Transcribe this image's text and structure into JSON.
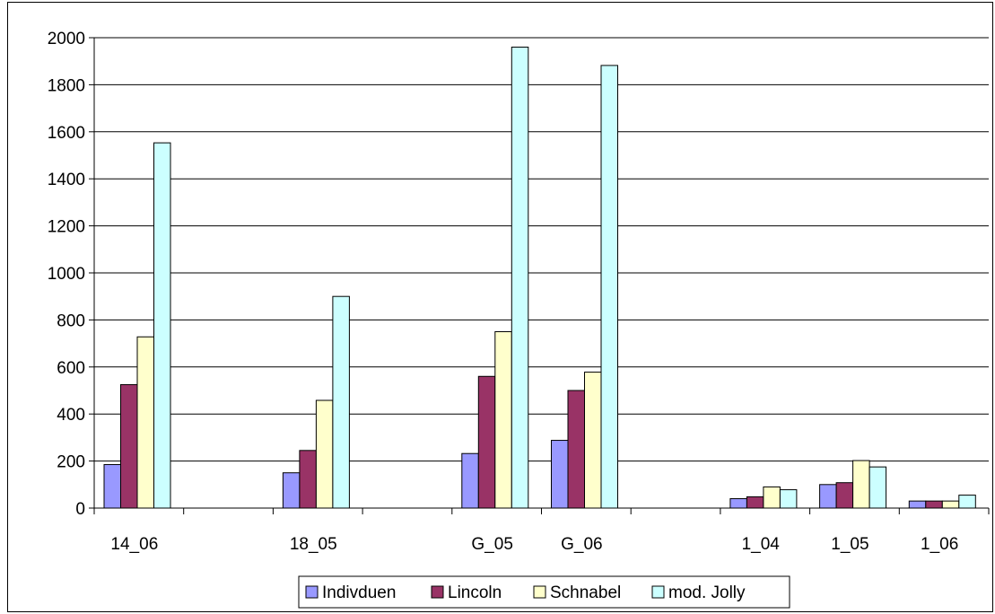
{
  "chart_data": {
    "type": "bar",
    "title": "",
    "xlabel": "",
    "ylabel": "",
    "ylim": [
      0,
      2000
    ],
    "yticks": [
      0,
      200,
      400,
      600,
      800,
      1000,
      1200,
      1400,
      1600,
      1800,
      2000
    ],
    "grid": true,
    "legend_position": "bottom",
    "categories": [
      "14_06",
      "",
      "18_05",
      "",
      "G_05",
      "G_06",
      "",
      "1_04",
      "1_05",
      "1_06"
    ],
    "series": [
      {
        "name": "Indivduen",
        "color": "#9999ff",
        "values": [
          185,
          null,
          150,
          null,
          232,
          288,
          null,
          40,
          100,
          30
        ]
      },
      {
        "name": "Lincoln",
        "color": "#993366",
        "values": [
          525,
          null,
          245,
          null,
          560,
          500,
          null,
          48,
          108,
          30
        ]
      },
      {
        "name": "Schnabel",
        "color": "#ffffcc",
        "values": [
          728,
          null,
          458,
          null,
          750,
          578,
          null,
          90,
          202,
          30
        ]
      },
      {
        "name": "mod. Jolly",
        "color": "#ccffff",
        "values": [
          1553,
          null,
          900,
          null,
          1960,
          1882,
          null,
          78,
          175,
          55
        ]
      }
    ]
  }
}
